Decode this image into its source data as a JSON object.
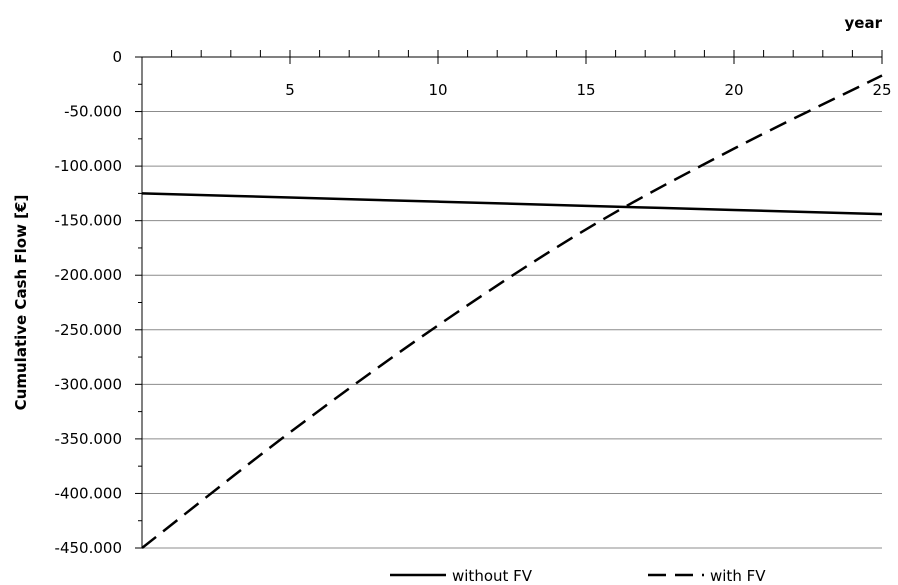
{
  "chart_data": {
    "type": "line",
    "xlabel": "year",
    "ylabel": "Cumulative Cash Flow [€]",
    "xlim": [
      0,
      25
    ],
    "ylim": [
      -450000,
      0
    ],
    "x_axis_position": "top",
    "x_ticks": [
      5,
      10,
      15,
      20,
      25
    ],
    "x_tick_labels": [
      "5",
      "10",
      "15",
      "20",
      "25"
    ],
    "y_ticks": [
      0,
      -50000,
      -100000,
      -150000,
      -200000,
      -250000,
      -300000,
      -350000,
      -400000,
      -450000
    ],
    "y_tick_labels": [
      "0",
      "-50.000",
      "-100.000",
      "-150.000",
      "-200.000",
      "-250.000",
      "-300.000",
      "-350.000",
      "-400.000",
      "-450.000"
    ],
    "grid": "horizontal",
    "legend_position": "bottom",
    "series": [
      {
        "name": "without FV",
        "style": "solid",
        "color": "#000000",
        "x": [
          0,
          5,
          10,
          15,
          20,
          25
        ],
        "y": [
          -125000,
          -128800,
          -132600,
          -136400,
          -140200,
          -144000
        ]
      },
      {
        "name": "with FV",
        "style": "dashed",
        "color": "#000000",
        "x": [
          0,
          5,
          10,
          15,
          20,
          25
        ],
        "y": [
          -450000,
          -344000,
          -246000,
          -158000,
          -84000,
          -17000
        ]
      }
    ]
  }
}
